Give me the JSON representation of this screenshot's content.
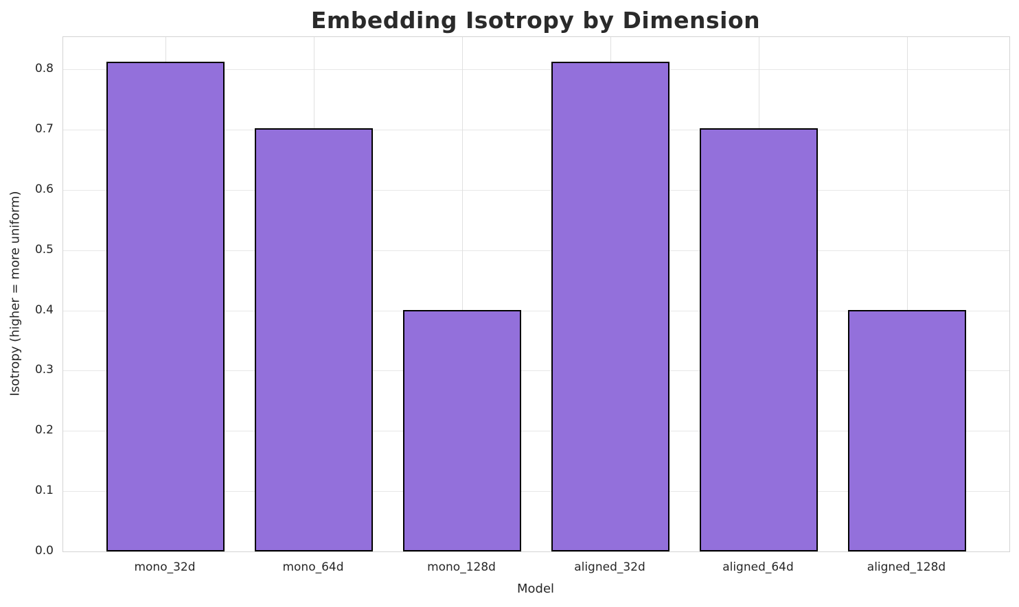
{
  "chart_data": {
    "type": "bar",
    "title": "Embedding Isotropy by Dimension",
    "xlabel": "Model",
    "ylabel": "Isotropy (higher = more uniform)",
    "categories": [
      "mono_32d",
      "mono_64d",
      "mono_128d",
      "aligned_32d",
      "aligned_64d",
      "aligned_128d"
    ],
    "values": [
      0.813,
      0.702,
      0.401,
      0.813,
      0.702,
      0.401
    ],
    "yticks": [
      0.0,
      0.1,
      0.2,
      0.3,
      0.4,
      0.5,
      0.6,
      0.7,
      0.8
    ],
    "ylim": [
      0,
      0.8537
    ],
    "xlim": [
      -0.69,
      5.69
    ],
    "bar_width": 0.8,
    "grid": "on",
    "legend": "none",
    "colors": {
      "bar_fill": "#9370DB",
      "bar_edge": "#000000",
      "grid_h": "#e7e7e7",
      "grid_v": "#e0e0e0",
      "spine": "#d3d3d3",
      "text": "#262626",
      "title": "#2a2a2a"
    }
  }
}
